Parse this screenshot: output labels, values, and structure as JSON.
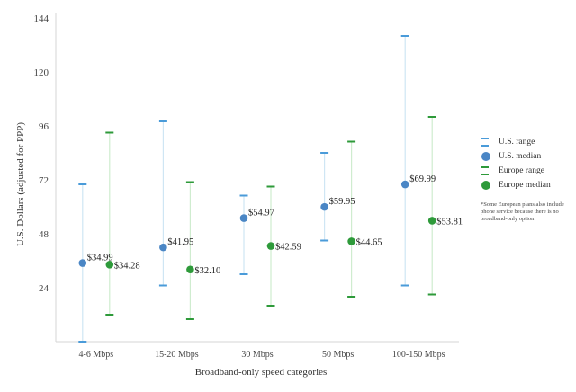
{
  "chart_data": {
    "type": "scatter",
    "title": "",
    "xlabel": "Broadband-only speed categories",
    "ylabel": "U.S. Dollars (adjusted for PPP)",
    "categories": [
      "4-6 Mbps",
      "15-20 Mbps",
      "30 Mbps",
      "50 Mbps",
      "100-150 Mbps"
    ],
    "ylim": [
      0,
      144
    ],
    "yticks": [
      24,
      48,
      72,
      96,
      120,
      144
    ],
    "series": [
      {
        "name": "U.S.",
        "color": "#4a86c5",
        "range_color": "#4a9bd9",
        "median": [
          34.99,
          41.95,
          54.97,
          59.95,
          69.99
        ],
        "median_labels": [
          "$34.99",
          "$41.95",
          "$54.97",
          "$59.95",
          "$69.99"
        ],
        "low": [
          0,
          25,
          30,
          45,
          25
        ],
        "high": [
          70,
          98,
          65,
          84,
          136
        ]
      },
      {
        "name": "Europe",
        "color": "#2e9a3a",
        "range_color": "#2e9a3a",
        "median": [
          34.28,
          32.1,
          42.59,
          44.65,
          53.81
        ],
        "median_labels": [
          "$34.28",
          "$32.10",
          "$42.59",
          "$44.65",
          "$53.81"
        ],
        "low": [
          12,
          10,
          16,
          20,
          21
        ],
        "high": [
          93,
          71,
          69,
          89,
          100
        ]
      }
    ],
    "grid": false,
    "legend_position": "right"
  },
  "legend": {
    "us_range": "U.S. range",
    "us_median": "U.S. median",
    "eu_range": "Europe range",
    "eu_median": "Europe median",
    "note": "*Some European plans also include phone service because there is no broadband-only option"
  }
}
